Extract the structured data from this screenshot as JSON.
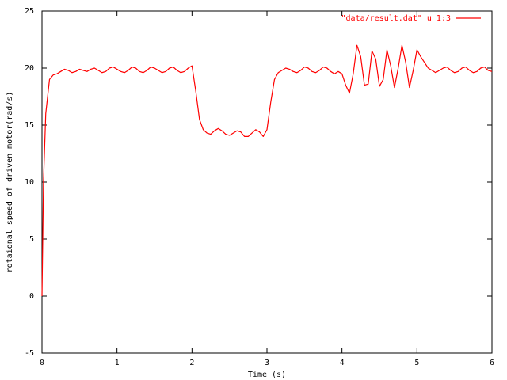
{
  "chart_data": {
    "type": "line",
    "xlabel": "Time (s)",
    "ylabel": "rotaional speed of driven motor(rad/s)",
    "xlim": [
      0,
      6
    ],
    "xticks": [
      0,
      1,
      2,
      3,
      4,
      5,
      6
    ],
    "ylim": [
      -5,
      25
    ],
    "yticks": [
      -5,
      0,
      5,
      10,
      15,
      20,
      25
    ],
    "legend": "top-right",
    "x": [
      0,
      0.02,
      0.05,
      0.1,
      0.15,
      0.2,
      0.25,
      0.3,
      0.35,
      0.4,
      0.45,
      0.5,
      0.55,
      0.6,
      0.65,
      0.7,
      0.75,
      0.8,
      0.85,
      0.9,
      0.95,
      1,
      1.05,
      1.1,
      1.15,
      1.2,
      1.25,
      1.3,
      1.35,
      1.4,
      1.45,
      1.5,
      1.55,
      1.6,
      1.65,
      1.7,
      1.75,
      1.8,
      1.85,
      1.9,
      1.95,
      2,
      2.05,
      2.1,
      2.15,
      2.2,
      2.25,
      2.3,
      2.35,
      2.4,
      2.45,
      2.5,
      2.55,
      2.6,
      2.65,
      2.7,
      2.75,
      2.8,
      2.85,
      2.9,
      2.95,
      3,
      3.05,
      3.1,
      3.15,
      3.2,
      3.25,
      3.3,
      3.35,
      3.4,
      3.45,
      3.5,
      3.55,
      3.6,
      3.65,
      3.7,
      3.75,
      3.8,
      3.85,
      3.9,
      3.95,
      4,
      4.05,
      4.1,
      4.15,
      4.2,
      4.25,
      4.3,
      4.35,
      4.4,
      4.45,
      4.5,
      4.55,
      4.6,
      4.65,
      4.7,
      4.75,
      4.8,
      4.85,
      4.9,
      4.95,
      5,
      5.05,
      5.1,
      5.15,
      5.2,
      5.25,
      5.3,
      5.35,
      5.4,
      5.45,
      5.5,
      5.55,
      5.6,
      5.65,
      5.7,
      5.75,
      5.8,
      5.85,
      5.9,
      5.95,
      6
    ],
    "series": [
      {
        "name": "\"data/result.dat\" u 1:3",
        "color": "#ff0000",
        "values": [
          0,
          10,
          16,
          19.0,
          19.4,
          19.5,
          19.7,
          19.9,
          19.8,
          19.6,
          19.7,
          19.9,
          19.8,
          19.7,
          19.9,
          20.0,
          19.8,
          19.6,
          19.7,
          20.0,
          20.1,
          19.9,
          19.7,
          19.6,
          19.8,
          20.1,
          20.0,
          19.7,
          19.6,
          19.8,
          20.1,
          20.0,
          19.8,
          19.6,
          19.7,
          20.0,
          20.1,
          19.8,
          19.6,
          19.7,
          20.0,
          20.2,
          18.0,
          15.5,
          14.6,
          14.3,
          14.2,
          14.5,
          14.7,
          14.5,
          14.2,
          14.1,
          14.3,
          14.5,
          14.4,
          14.0,
          14.0,
          14.3,
          14.6,
          14.4,
          14.0,
          14.6,
          17.0,
          19.0,
          19.6,
          19.8,
          20.0,
          19.9,
          19.7,
          19.6,
          19.8,
          20.1,
          20.0,
          19.7,
          19.6,
          19.8,
          20.1,
          20.0,
          19.7,
          19.5,
          19.7,
          19.5,
          18.5,
          17.8,
          19.5,
          22.0,
          21.0,
          18.5,
          18.6,
          21.5,
          20.8,
          18.4,
          19.0,
          21.6,
          20.2,
          18.3,
          20.0,
          22.0,
          20.5,
          18.3,
          19.8,
          21.6,
          21.0,
          20.5,
          20.0,
          19.8,
          19.6,
          19.8,
          20.0,
          20.1,
          19.8,
          19.6,
          19.7,
          20.0,
          20.1,
          19.8,
          19.6,
          19.7,
          20.0,
          20.1,
          19.8,
          19.7
        ]
      }
    ]
  }
}
